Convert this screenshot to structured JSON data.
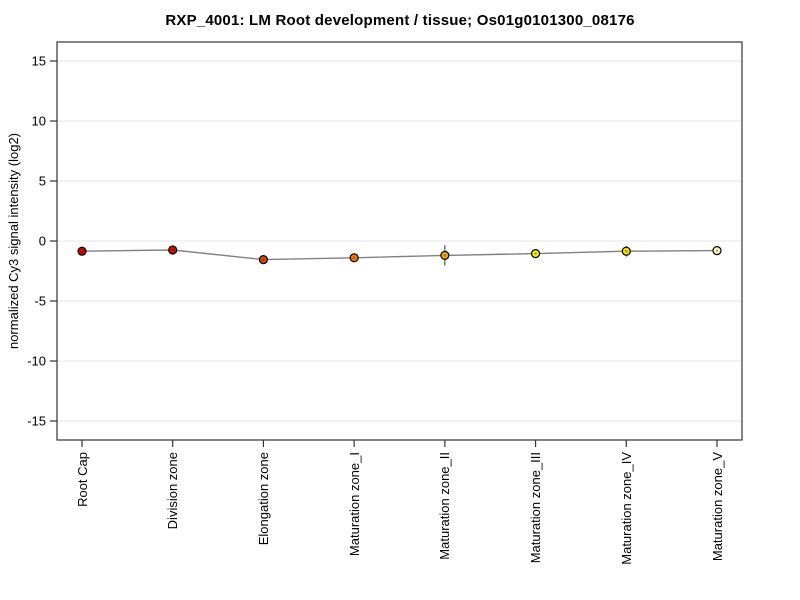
{
  "title": "RXP_4001: LM Root development / tissue; Os01g0101300_08176",
  "chart_data": {
    "type": "line",
    "title": "RXP_4001: LM Root development / tissue; Os01g0101300_08176",
    "xlabel": "",
    "ylabel": "normalized Cy3 signal intensity (log2)",
    "categories": [
      "Root Cap",
      "Division zone",
      "Elongation zone",
      "Maturation zone_I",
      "Maturation zone_II",
      "Maturation zone_III",
      "Maturation zone_IV",
      "Maturation zone_V"
    ],
    "series": [
      {
        "name": "Os01g0101300_08176",
        "values": [
          -0.85,
          -0.75,
          -1.55,
          -1.4,
          -1.2,
          -1.05,
          -0.85,
          -0.8
        ],
        "errors": [
          0.1,
          0.1,
          0.1,
          0.15,
          0.85,
          0.1,
          0.45,
          0.1
        ],
        "point_colors": [
          "#cc0000",
          "#d01000",
          "#dd4400",
          "#ee7700",
          "#eeaa00",
          "#eeee00",
          "#eedd00",
          "#ffffbb"
        ]
      }
    ],
    "yticks": [
      -15,
      -10,
      -5,
      0,
      5,
      10,
      15
    ],
    "ylim": [
      -16.6,
      16.6
    ],
    "grid": {
      "horizontal": true,
      "color": "#e6e6e6"
    },
    "line_color": "#808080",
    "marker_outline_color": "#000000",
    "error_bar_color": "#333333",
    "axis_color": "#333333",
    "background": "#ffffff",
    "legend_position": "none"
  }
}
